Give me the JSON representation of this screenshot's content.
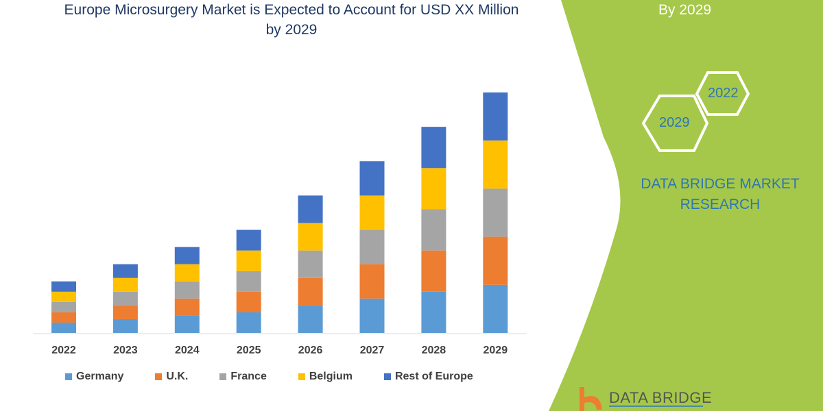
{
  "chart_data": {
    "type": "bar",
    "stacked": true,
    "title": "Europe Microsurgery Market is Expected to Account for USD XX Million by 2029",
    "categories": [
      "2022",
      "2023",
      "2024",
      "2025",
      "2026",
      "2027",
      "2028",
      "2029"
    ],
    "series": [
      {
        "name": "Germany",
        "color": "#5b9bd5",
        "values": [
          15,
          20,
          25,
          30,
          40,
          50,
          60,
          70
        ]
      },
      {
        "name": "U.K.",
        "color": "#ed7d31",
        "values": [
          15,
          20,
          25,
          30,
          40,
          50,
          60,
          70
        ]
      },
      {
        "name": "France",
        "color": "#a5a5a5",
        "values": [
          15,
          20,
          25,
          30,
          40,
          50,
          60,
          70
        ]
      },
      {
        "name": "Belgium",
        "color": "#ffc000",
        "values": [
          15,
          20,
          25,
          30,
          40,
          50,
          60,
          70
        ]
      },
      {
        "name": "Rest of Europe",
        "color": "#4472c4",
        "values": [
          15,
          20,
          25,
          30,
          40,
          50,
          60,
          70
        ]
      }
    ],
    "xlabel": "",
    "ylabel": "",
    "ylim": [
      0,
      350
    ],
    "grid": false,
    "legend": "bottom"
  },
  "side_panel": {
    "by_text": "By 2029",
    "hex_2022": "2022",
    "hex_2029": "2029",
    "brand_line1": "DATA BRIDGE MARKET",
    "brand_line2": "RESEARCH",
    "logo_text": "DATA BRIDGE",
    "panel_color": "#a5c84a"
  }
}
